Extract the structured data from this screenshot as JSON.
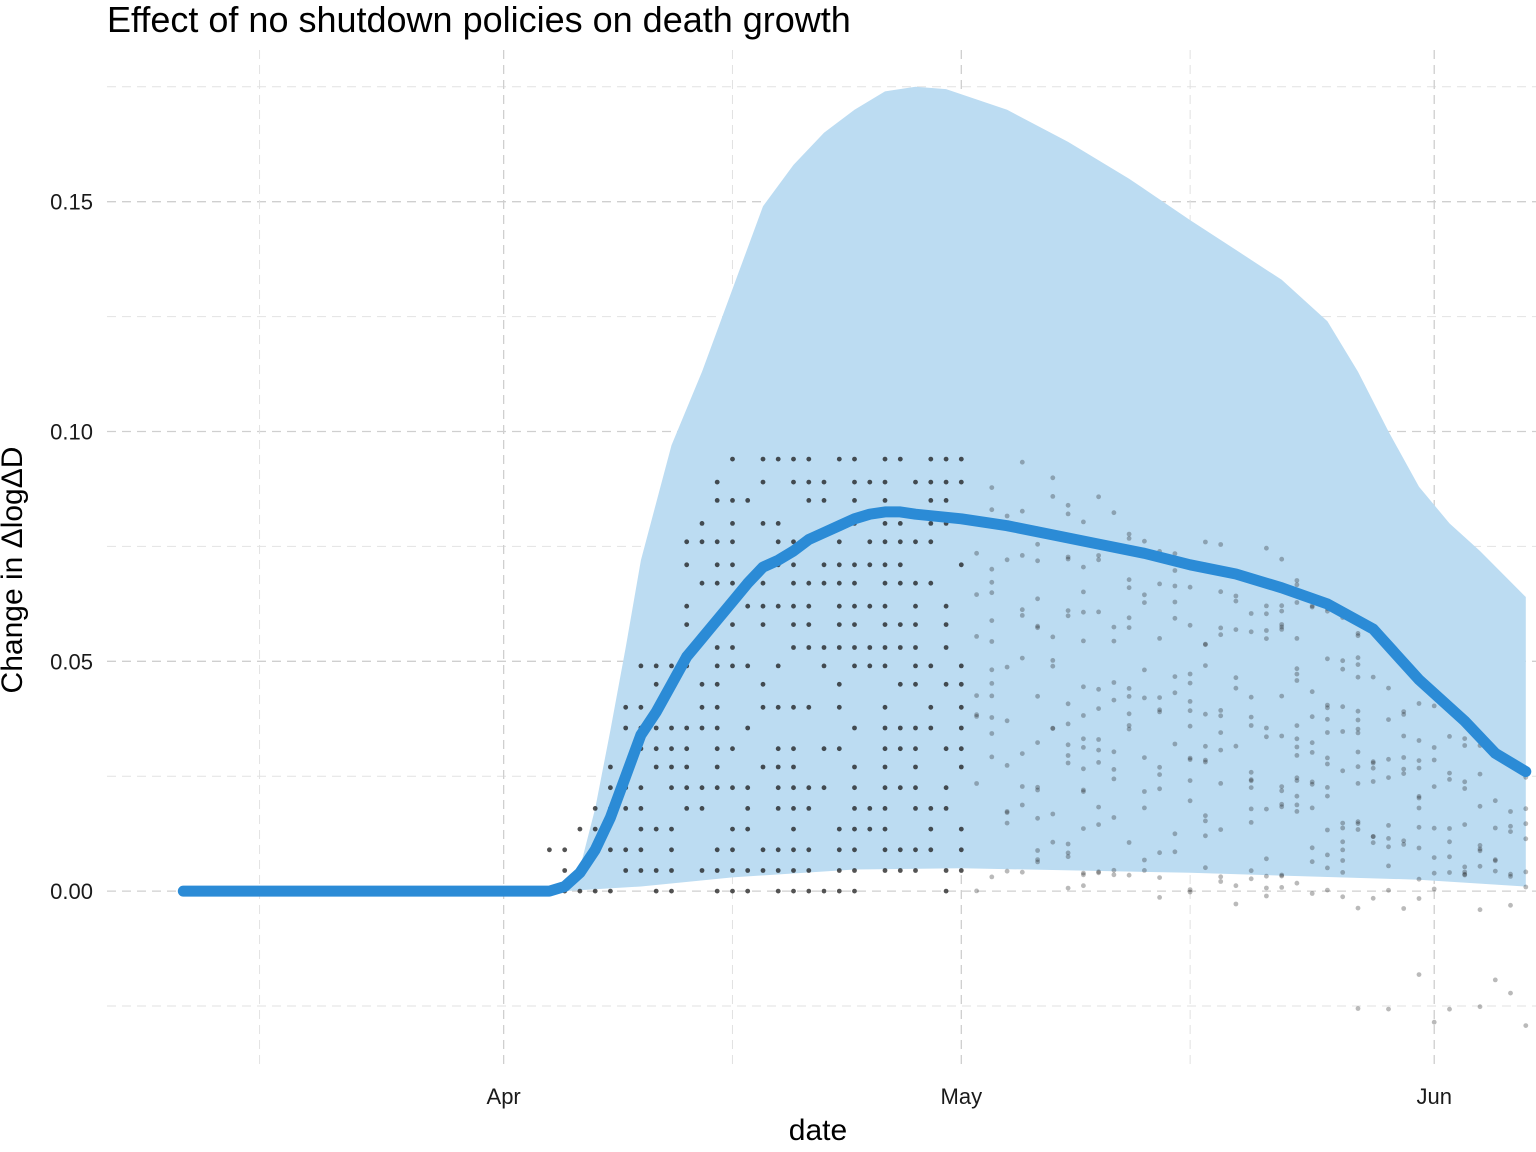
{
  "chart_data": {
    "type": "line",
    "title": "Effect of no shutdown policies on death growth",
    "xlabel": "date",
    "ylabel": "Change in ΔlogΔD",
    "x_ticks": [
      {
        "label": "Apr",
        "date": "2020-04-01"
      },
      {
        "label": "May",
        "date": "2020-05-01"
      },
      {
        "label": "Jun",
        "date": "2020-06-01"
      }
    ],
    "x_minor_gridlines": [
      "2020-03-16",
      "2020-04-16",
      "2020-05-16"
    ],
    "y_ticks": [
      0.0,
      0.05,
      0.1,
      0.15
    ],
    "y_tick_labels": [
      "0.00",
      "0.05",
      "0.10",
      "0.15"
    ],
    "y_minor_gridlines": [
      -0.025,
      0.025,
      0.075,
      0.125,
      0.175
    ],
    "xlim": [
      "2020-03-06",
      "2020-06-04"
    ],
    "ylim": [
      -0.04,
      0.183
    ],
    "grid": true,
    "colors": {
      "line": "#2b8bd6",
      "band": "#bcdcf2",
      "points": "#1a1a1a",
      "grid": "#cfcfcf"
    },
    "series": [
      {
        "kind": "mean_line",
        "points": [
          [
            "2020-03-11",
            0.0
          ],
          [
            "2020-04-04",
            0.0
          ],
          [
            "2020-04-05",
            0.001
          ],
          [
            "2020-04-06",
            0.004
          ],
          [
            "2020-04-07",
            0.009
          ],
          [
            "2020-04-08",
            0.016
          ],
          [
            "2020-04-09",
            0.025
          ],
          [
            "2020-04-10",
            0.034
          ],
          [
            "2020-04-11",
            0.039
          ],
          [
            "2020-04-12",
            0.045
          ],
          [
            "2020-04-13",
            0.051
          ],
          [
            "2020-04-14",
            0.055
          ],
          [
            "2020-04-15",
            0.059
          ],
          [
            "2020-04-16",
            0.063
          ],
          [
            "2020-04-17",
            0.067
          ],
          [
            "2020-04-18",
            0.0705
          ],
          [
            "2020-04-19",
            0.072
          ],
          [
            "2020-04-20",
            0.074
          ],
          [
            "2020-04-21",
            0.0765
          ],
          [
            "2020-04-22",
            0.078
          ],
          [
            "2020-04-23",
            0.0795
          ],
          [
            "2020-04-24",
            0.081
          ],
          [
            "2020-04-25",
            0.082
          ],
          [
            "2020-04-26",
            0.0825
          ],
          [
            "2020-04-27",
            0.0825
          ],
          [
            "2020-04-28",
            0.082
          ],
          [
            "2020-05-01",
            0.081
          ],
          [
            "2020-05-04",
            0.0795
          ],
          [
            "2020-05-07",
            0.0775
          ],
          [
            "2020-05-10",
            0.0755
          ],
          [
            "2020-05-13",
            0.0735
          ],
          [
            "2020-05-16",
            0.071
          ],
          [
            "2020-05-19",
            0.069
          ],
          [
            "2020-05-22",
            0.066
          ],
          [
            "2020-05-25",
            0.0625
          ],
          [
            "2020-05-28",
            0.057
          ],
          [
            "2020-05-31",
            0.046
          ],
          [
            "2020-06-03",
            0.037
          ],
          [
            "2020-06-05",
            0.03
          ],
          [
            "2020-06-07",
            0.026
          ]
        ]
      },
      {
        "kind": "interval_band",
        "upper": [
          [
            "2020-04-05",
            0.001
          ],
          [
            "2020-04-06",
            0.005
          ],
          [
            "2020-04-07",
            0.018
          ],
          [
            "2020-04-08",
            0.035
          ],
          [
            "2020-04-09",
            0.053
          ],
          [
            "2020-04-10",
            0.072
          ],
          [
            "2020-04-12",
            0.097
          ],
          [
            "2020-04-14",
            0.113
          ],
          [
            "2020-04-16",
            0.131
          ],
          [
            "2020-04-18",
            0.149
          ],
          [
            "2020-04-20",
            0.158
          ],
          [
            "2020-04-22",
            0.165
          ],
          [
            "2020-04-24",
            0.17
          ],
          [
            "2020-04-26",
            0.174
          ],
          [
            "2020-04-28",
            0.175
          ],
          [
            "2020-04-30",
            0.1745
          ],
          [
            "2020-05-04",
            0.17
          ],
          [
            "2020-05-08",
            0.163
          ],
          [
            "2020-05-12",
            0.155
          ],
          [
            "2020-05-16",
            0.146
          ],
          [
            "2020-05-19",
            0.1395
          ],
          [
            "2020-05-22",
            0.133
          ],
          [
            "2020-05-25",
            0.124
          ],
          [
            "2020-05-27",
            0.113
          ],
          [
            "2020-05-29",
            0.1
          ],
          [
            "2020-05-31",
            0.088
          ],
          [
            "2020-06-02",
            0.08
          ],
          [
            "2020-06-04",
            0.074
          ],
          [
            "2020-06-07",
            0.064
          ]
        ],
        "lower": [
          [
            "2020-04-05",
            0.0
          ],
          [
            "2020-04-10",
            0.001
          ],
          [
            "2020-04-16",
            0.003
          ],
          [
            "2020-04-24",
            0.0047
          ],
          [
            "2020-05-01",
            0.005
          ],
          [
            "2020-05-16",
            0.004
          ],
          [
            "2020-05-31",
            0.0025
          ],
          [
            "2020-06-07",
            0.001
          ]
        ]
      }
    ]
  }
}
